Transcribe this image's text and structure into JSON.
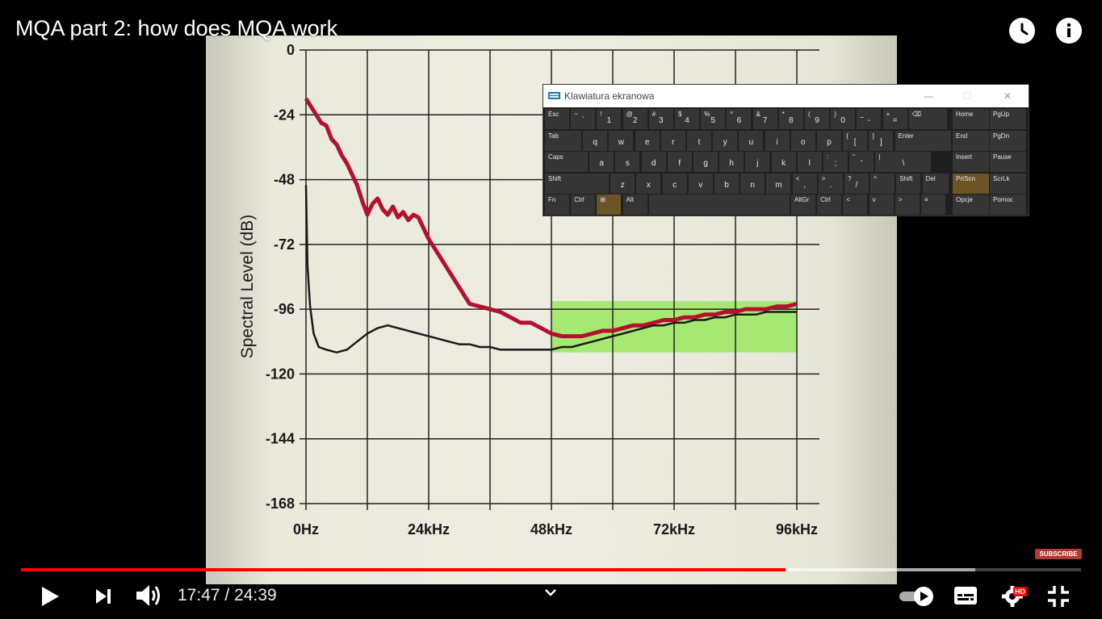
{
  "video": {
    "title": "MQA part 2: how does MQA work",
    "current_time": "17:47",
    "time_separator": " / ",
    "duration": "24:39",
    "played_fraction": 0.721,
    "buffered_fraction": 0.9,
    "subscribe_label": "SUBSCRIBE",
    "hd_label": "HD",
    "icons": [
      "clock-icon",
      "info-icon",
      "play-icon",
      "next-icon",
      "volume-icon",
      "chevron-down-icon",
      "autoplay-toggle",
      "subtitles-icon",
      "settings-icon",
      "exit-fullscreen-icon"
    ]
  },
  "chart_data": {
    "type": "line",
    "ylabel": "Spectral Level (dB)",
    "xlabel": "",
    "x_ticks": [
      "0Hz",
      "24kHz",
      "48kHz",
      "72kHz",
      "96kHz"
    ],
    "y_ticks": [
      "0",
      "-24",
      "-48",
      "-72",
      "-96",
      "-120",
      "-144",
      "-168"
    ],
    "xlim": [
      0,
      100
    ],
    "ylim": [
      -168,
      0
    ],
    "grid": true,
    "highlight_region": {
      "x": [
        48,
        96
      ],
      "y": [
        -93,
        -112
      ],
      "color": "#9be85f"
    },
    "series": [
      {
        "color": "#b5102e",
        "x": [
          0,
          2,
          3,
          4,
          5,
          6,
          7,
          8,
          9,
          10,
          11,
          12,
          13,
          14,
          15,
          16,
          17,
          18,
          19,
          20,
          21,
          22,
          24,
          26,
          28,
          30,
          32,
          34,
          36,
          38,
          40,
          42,
          44,
          46,
          48,
          50,
          52,
          54,
          56,
          58,
          60,
          62,
          64,
          66,
          68,
          70,
          72,
          74,
          76,
          78,
          80,
          82,
          84,
          86,
          88,
          90,
          92,
          94,
          96
        ],
        "y": [
          -18,
          -24,
          -27,
          -28,
          -33,
          -35,
          -39,
          -42,
          -46,
          -50,
          -56,
          -61,
          -57,
          -55,
          -59,
          -61,
          -58,
          -62,
          -60,
          -63,
          -61,
          -62,
          -70,
          -76,
          -82,
          -88,
          -94,
          -95,
          -96,
          -97,
          -99,
          -101,
          -101,
          -103,
          -105,
          -106,
          -106,
          -106,
          -105,
          -104,
          -104,
          -103,
          -102,
          -102,
          -101,
          -100,
          -100,
          -99,
          -99,
          -98,
          -98,
          -97,
          -97,
          -96,
          -96,
          -96,
          -95,
          -95,
          -94
        ]
      },
      {
        "color": "#1a1a1a",
        "x": [
          0,
          0.3,
          0.8,
          1.5,
          2.5,
          4,
          6,
          8,
          10,
          12,
          14,
          16,
          18,
          20,
          22,
          24,
          26,
          28,
          30,
          32,
          34,
          36,
          38,
          40,
          42,
          44,
          46,
          48,
          50,
          52,
          54,
          56,
          58,
          60,
          62,
          64,
          66,
          68,
          70,
          72,
          74,
          76,
          78,
          80,
          82,
          84,
          86,
          88,
          90,
          92,
          94,
          96
        ],
        "y": [
          -50,
          -80,
          -95,
          -105,
          -110,
          -111,
          -112,
          -111,
          -108,
          -105,
          -103,
          -102,
          -103,
          -104,
          -105,
          -106,
          -107,
          -108,
          -109,
          -109,
          -110,
          -110,
          -111,
          -111,
          -111,
          -111,
          -111,
          -111,
          -110,
          -110,
          -109,
          -108,
          -107,
          -106,
          -105,
          -104,
          -103,
          -102,
          -102,
          -101,
          -101,
          -100,
          -100,
          -99,
          -99,
          -98,
          -98,
          -98,
          -97,
          -97,
          -97,
          -97
        ]
      }
    ]
  },
  "keyboard": {
    "title": "Klawiatura ekranowa",
    "minimize": "—",
    "maximize": "☐",
    "close": "✕",
    "rows": [
      [
        [
          "Esc",
          ""
        ],
        [
          "~",
          "`"
        ],
        [
          "!",
          "1"
        ],
        [
          "@",
          "2"
        ],
        [
          "#",
          "3"
        ],
        [
          "$",
          "4"
        ],
        [
          "%",
          "5"
        ],
        [
          "^",
          "6"
        ],
        [
          "&",
          "7"
        ],
        [
          "*",
          "8"
        ],
        [
          "(",
          "9"
        ],
        [
          ")",
          "0"
        ],
        [
          "_",
          "-"
        ],
        [
          "+",
          "="
        ],
        [
          "⌫",
          ""
        ]
      ],
      [
        [
          "Tab",
          ""
        ],
        [
          "",
          "q"
        ],
        [
          "",
          "w"
        ],
        [
          "",
          "e"
        ],
        [
          "",
          "r"
        ],
        [
          "",
          "t"
        ],
        [
          "",
          "y"
        ],
        [
          "",
          "u"
        ],
        [
          "",
          "i"
        ],
        [
          "",
          "o"
        ],
        [
          "",
          "p"
        ],
        [
          "{",
          "["
        ],
        [
          "}",
          "]"
        ],
        [
          "Enter",
          ""
        ]
      ],
      [
        [
          "Caps",
          ""
        ],
        [
          "",
          "a"
        ],
        [
          "",
          "s"
        ],
        [
          "",
          "d"
        ],
        [
          "",
          "f"
        ],
        [
          "",
          "g"
        ],
        [
          "",
          "h"
        ],
        [
          "",
          "j"
        ],
        [
          "",
          "k"
        ],
        [
          "",
          "l"
        ],
        [
          ":",
          ";"
        ],
        [
          "\"",
          "'"
        ],
        [
          "|",
          "\\"
        ]
      ],
      [
        [
          "Shift",
          ""
        ],
        [
          "",
          "z"
        ],
        [
          "",
          "x"
        ],
        [
          "",
          "c"
        ],
        [
          "",
          "v"
        ],
        [
          "",
          "b"
        ],
        [
          "",
          "n"
        ],
        [
          "",
          "m"
        ],
        [
          "<",
          ","
        ],
        [
          ">",
          "."
        ],
        [
          "?",
          "/"
        ],
        [
          "^",
          ""
        ],
        [
          "Shift",
          ""
        ],
        [
          "Del",
          ""
        ]
      ],
      [
        [
          "Fn",
          ""
        ],
        [
          "Ctrl",
          ""
        ],
        [
          "⊞",
          ""
        ],
        [
          "Alt",
          ""
        ],
        [
          "",
          ""
        ],
        [
          "AltGr",
          ""
        ],
        [
          "Ctrl",
          ""
        ],
        [
          "<",
          ""
        ],
        [
          "v",
          ""
        ],
        [
          ">",
          ""
        ],
        [
          "≡",
          ""
        ]
      ]
    ],
    "side_keys": [
      [
        "Home",
        "PgUp"
      ],
      [
        "End",
        "PgDn"
      ],
      [
        "Insert",
        "Pause"
      ],
      [
        "PrtScn",
        "ScrLk"
      ],
      [
        "Opcje",
        "Pomoc"
      ]
    ]
  }
}
